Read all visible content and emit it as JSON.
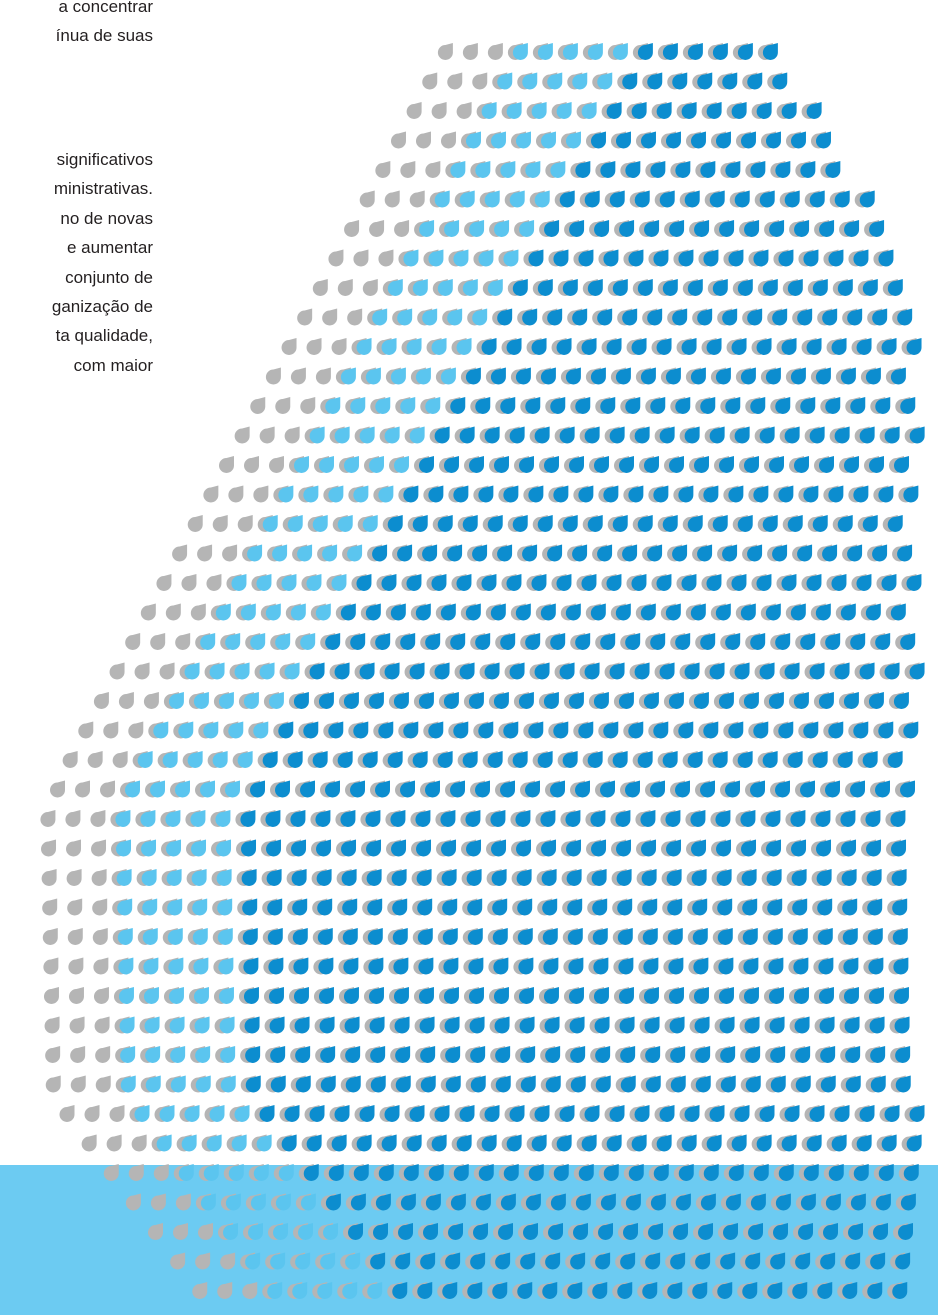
{
  "paragraph_1": {
    "line_1": "a concentrar",
    "line_2": "ínua de suas"
  },
  "paragraph_2": {
    "line_1": "significativos",
    "line_2": "ministrativas.",
    "line_3": "no de novas",
    "line_4": "e aumentar",
    "line_5": "conjunto de",
    "line_6": "ganização de",
    "line_7": "ta qualidade,",
    "line_8": "com maior"
  },
  "decoration": {
    "name": "water-drops-pattern",
    "colors": {
      "gray": "#b5b5b5",
      "light_blue": "#5bc5ef",
      "dark_blue": "#0c8dcf",
      "band": "#6ccbf2"
    }
  }
}
